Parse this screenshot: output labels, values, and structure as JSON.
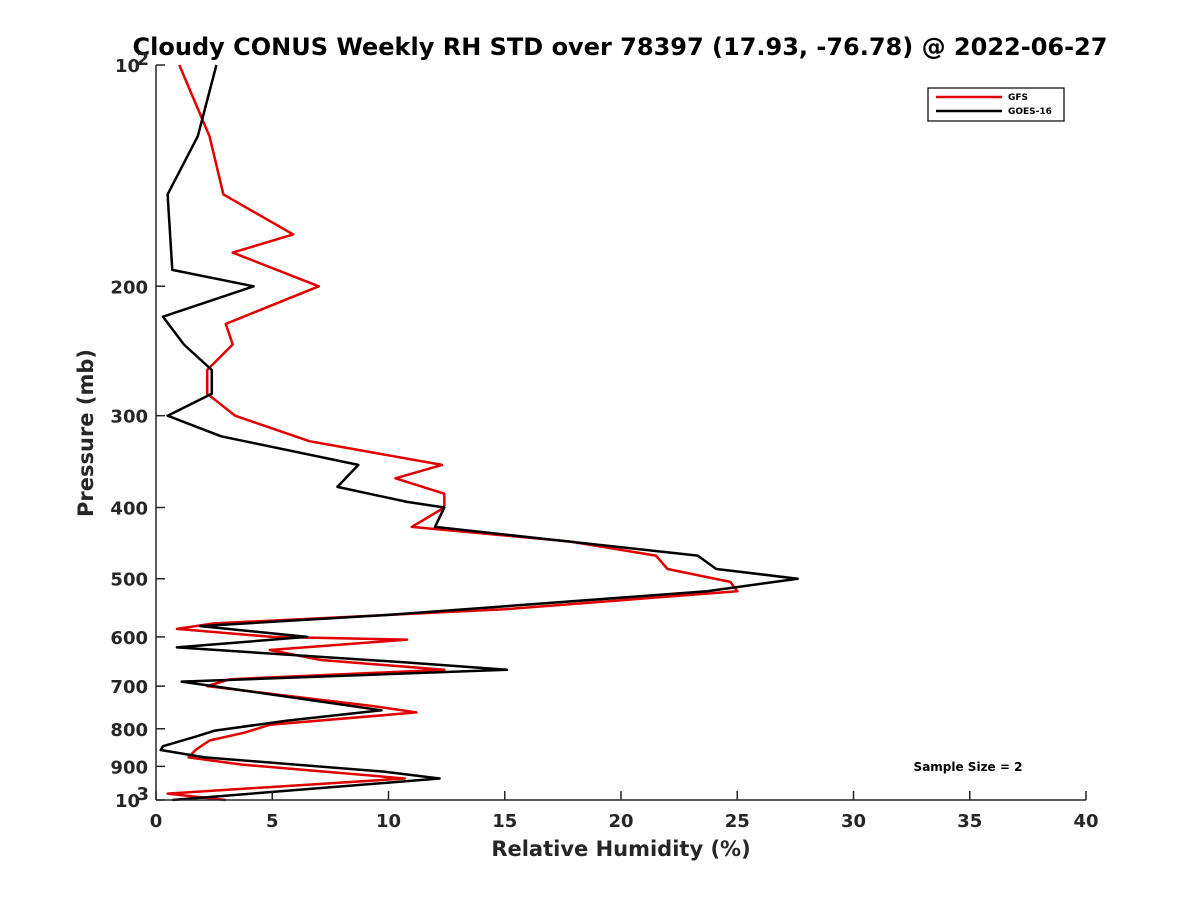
{
  "chart_data": {
    "type": "line",
    "title": "Cloudy CONUS Weekly RH STD over 78397 (17.93, -76.78) @ 2022-06-27",
    "xlabel": "Relative Humidity (%)",
    "ylabel": "Pressure (mb)",
    "xlim": [
      0,
      40
    ],
    "ylim": [
      100,
      1000
    ],
    "yscale": "log",
    "y_reversed": true,
    "x_ticks": [
      "0",
      "5",
      "10",
      "15",
      "20",
      "25",
      "30",
      "35",
      "40"
    ],
    "y_ticks": [
      {
        "value": 100,
        "label": "10",
        "sup": "2"
      },
      {
        "value": 200,
        "label": "200",
        "sup": ""
      },
      {
        "value": 300,
        "label": "300",
        "sup": ""
      },
      {
        "value": 400,
        "label": "400",
        "sup": ""
      },
      {
        "value": 500,
        "label": "500",
        "sup": ""
      },
      {
        "value": 600,
        "label": "600",
        "sup": ""
      },
      {
        "value": 700,
        "label": "700",
        "sup": ""
      },
      {
        "value": 800,
        "label": "800",
        "sup": ""
      },
      {
        "value": 900,
        "label": "900",
        "sup": ""
      },
      {
        "value": 1000,
        "label": "10",
        "sup": "3"
      }
    ],
    "grid": false,
    "legend_position": "top-right",
    "annotation": "Sample Size = 2",
    "series": [
      {
        "name": "GFS",
        "color": "#e00000",
        "points": [
          [
            1.0,
            100
          ],
          [
            2.3,
            125
          ],
          [
            2.9,
            150
          ],
          [
            5.9,
            170
          ],
          [
            3.3,
            180
          ],
          [
            7.0,
            200
          ],
          [
            3.0,
            225
          ],
          [
            3.3,
            240
          ],
          [
            2.2,
            260
          ],
          [
            2.2,
            280
          ],
          [
            3.4,
            300
          ],
          [
            6.6,
            325
          ],
          [
            12.3,
            350
          ],
          [
            10.3,
            365
          ],
          [
            12.4,
            383
          ],
          [
            12.4,
            400
          ],
          [
            11.0,
            425
          ],
          [
            17.8,
            445
          ],
          [
            21.5,
            465
          ],
          [
            22.0,
            485
          ],
          [
            24.7,
            505
          ],
          [
            25.0,
            520
          ],
          [
            15.0,
            550
          ],
          [
            2.5,
            575
          ],
          [
            0.9,
            585
          ],
          [
            5.0,
            600
          ],
          [
            10.8,
            605
          ],
          [
            4.9,
            625
          ],
          [
            7.1,
            645
          ],
          [
            12.4,
            665
          ],
          [
            3.2,
            685
          ],
          [
            2.2,
            700
          ],
          [
            9.3,
            745
          ],
          [
            11.2,
            760
          ],
          [
            4.9,
            790
          ],
          [
            3.8,
            810
          ],
          [
            2.3,
            830
          ],
          [
            1.7,
            855
          ],
          [
            1.4,
            875
          ],
          [
            3.7,
            895
          ],
          [
            10.7,
            935
          ],
          [
            0.5,
            980
          ],
          [
            3.0,
            1000
          ]
        ]
      },
      {
        "name": "GOES-16",
        "color": "#000000",
        "points": [
          [
            2.6,
            100
          ],
          [
            1.8,
            125
          ],
          [
            0.5,
            150
          ],
          [
            0.7,
            190
          ],
          [
            4.2,
            200
          ],
          [
            0.3,
            220
          ],
          [
            1.2,
            240
          ],
          [
            2.4,
            260
          ],
          [
            2.4,
            280
          ],
          [
            0.5,
            300
          ],
          [
            2.8,
            320
          ],
          [
            8.7,
            350
          ],
          [
            7.8,
            375
          ],
          [
            10.8,
            393
          ],
          [
            12.4,
            400
          ],
          [
            12.0,
            425
          ],
          [
            23.3,
            465
          ],
          [
            24.1,
            485
          ],
          [
            27.6,
            500
          ],
          [
            23.7,
            520
          ],
          [
            10.0,
            560
          ],
          [
            1.9,
            580
          ],
          [
            6.5,
            600
          ],
          [
            0.9,
            620
          ],
          [
            10.8,
            650
          ],
          [
            15.1,
            665
          ],
          [
            1.1,
            690
          ],
          [
            9.7,
            755
          ],
          [
            5.6,
            780
          ],
          [
            2.5,
            805
          ],
          [
            1.7,
            820
          ],
          [
            0.3,
            845
          ],
          [
            0.2,
            855
          ],
          [
            2.1,
            875
          ],
          [
            9.8,
            915
          ],
          [
            12.2,
            935
          ],
          [
            0.7,
            1000
          ]
        ]
      }
    ]
  }
}
